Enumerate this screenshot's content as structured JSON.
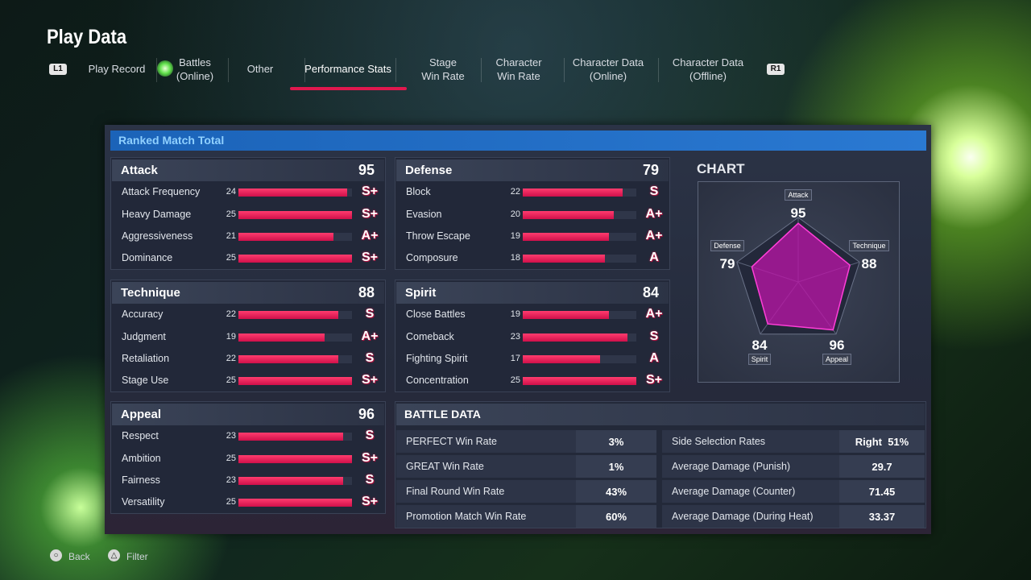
{
  "header": {
    "title": "Play Data"
  },
  "nav": {
    "left_button": "L1",
    "right_button": "R1",
    "active_tab": 3,
    "tabs": [
      [
        "Play Record"
      ],
      [
        "Battles",
        "(Online)"
      ],
      [
        "Other"
      ],
      [
        "Performance Stats"
      ],
      [
        "Stage",
        "Win Rate"
      ],
      [
        "Character",
        "Win Rate"
      ],
      [
        "Character Data",
        "(Online)"
      ],
      [
        "Character Data",
        "(Offline)"
      ]
    ]
  },
  "panel": {
    "title": "Ranked Match Total",
    "categories": [
      {
        "name": "Attack",
        "total": 95,
        "stats": [
          {
            "name": "Attack Frequency",
            "value": 24,
            "grade": "S+"
          },
          {
            "name": "Heavy Damage",
            "value": 25,
            "grade": "S+"
          },
          {
            "name": "Aggressiveness",
            "value": 21,
            "grade": "A+"
          },
          {
            "name": "Dominance",
            "value": 25,
            "grade": "S+"
          }
        ]
      },
      {
        "name": "Defense",
        "total": 79,
        "stats": [
          {
            "name": "Block",
            "value": 22,
            "grade": "S"
          },
          {
            "name": "Evasion",
            "value": 20,
            "grade": "A+"
          },
          {
            "name": "Throw Escape",
            "value": 19,
            "grade": "A+"
          },
          {
            "name": "Composure",
            "value": 18,
            "grade": "A"
          }
        ]
      },
      {
        "name": "Technique",
        "total": 88,
        "stats": [
          {
            "name": "Accuracy",
            "value": 22,
            "grade": "S"
          },
          {
            "name": "Judgment",
            "value": 19,
            "grade": "A+"
          },
          {
            "name": "Retaliation",
            "value": 22,
            "grade": "S"
          },
          {
            "name": "Stage Use",
            "value": 25,
            "grade": "S+"
          }
        ]
      },
      {
        "name": "Spirit",
        "total": 84,
        "stats": [
          {
            "name": "Close Battles",
            "value": 19,
            "grade": "A+"
          },
          {
            "name": "Comeback",
            "value": 23,
            "grade": "S"
          },
          {
            "name": "Fighting Spirit",
            "value": 17,
            "grade": "A"
          },
          {
            "name": "Concentration",
            "value": 25,
            "grade": "S+"
          }
        ]
      },
      {
        "name": "Appeal",
        "total": 96,
        "stats": [
          {
            "name": "Respect",
            "value": 23,
            "grade": "S"
          },
          {
            "name": "Ambition",
            "value": 25,
            "grade": "S+"
          },
          {
            "name": "Fairness",
            "value": 23,
            "grade": "S"
          },
          {
            "name": "Versatility",
            "value": 25,
            "grade": "S+"
          }
        ]
      }
    ]
  },
  "chart": {
    "title": "CHART",
    "axes": [
      {
        "label": "Attack",
        "value": 95
      },
      {
        "label": "Technique",
        "value": 88
      },
      {
        "label": "Appeal",
        "value": 96
      },
      {
        "label": "Spirit",
        "value": 84
      },
      {
        "label": "Defense",
        "value": 79
      }
    ]
  },
  "battle_data": {
    "title": "BATTLE DATA",
    "left": [
      [
        "PERFECT Win Rate",
        "3%"
      ],
      [
        "GREAT Win Rate",
        "1%"
      ],
      [
        "Final Round Win Rate",
        "43%"
      ],
      [
        "Promotion Match Win Rate",
        "60%"
      ]
    ],
    "right": [
      [
        "Side Selection Rates",
        "Right  51%"
      ],
      [
        "Average Damage (Punish)",
        "29.7"
      ],
      [
        "Average Damage (Counter)",
        "71.45"
      ],
      [
        "Average Damage (During Heat)",
        "33.37"
      ]
    ]
  },
  "footer": {
    "buttons": [
      {
        "icon": "○",
        "label": "Back"
      },
      {
        "icon": "△",
        "label": "Filter"
      }
    ]
  }
}
